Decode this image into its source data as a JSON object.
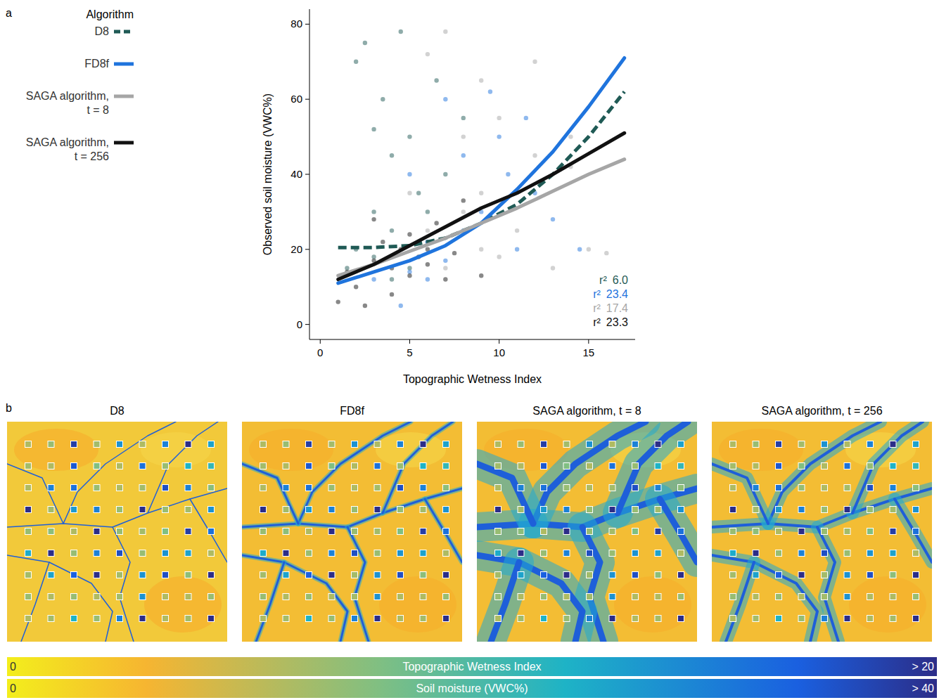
{
  "chart_data": [
    {
      "type": "scatter",
      "panel_label": "a",
      "x_label": "Topographic Wetness Index",
      "y_label": "Observed soil moisture (VWC%)",
      "xlim": [
        -0.6,
        17.6
      ],
      "xticks": [
        0,
        5,
        10,
        15
      ],
      "ylim": [
        -4,
        84
      ],
      "yticks": [
        0,
        20,
        40,
        60,
        80
      ],
      "grid": false,
      "legend": "left",
      "legend_title": "Algorithm",
      "r2_symbol": "r²",
      "series": [
        {
          "name": "D8",
          "color": "#1f5a55",
          "line_style": "dashed",
          "r2_label": "6.0",
          "x": [
            1,
            3,
            5,
            7,
            9,
            11,
            13,
            15,
            17
          ],
          "values": [
            20.5,
            20.5,
            21,
            23,
            27,
            32,
            40,
            50,
            62
          ],
          "points": {
            "x": [
              2,
              2.5,
              3,
              3.5,
              4,
              4.5,
              5,
              5.5,
              6,
              2,
              3,
              4,
              5,
              6,
              7,
              1.5,
              3,
              4,
              8,
              6.5
            ],
            "y": [
              70,
              75,
              52,
              60,
              45,
              78,
              50,
              35,
              22,
              20,
              18,
              25,
              15,
              30,
              40,
              15,
              30,
              12,
              55,
              65
            ]
          }
        },
        {
          "name": "FD8f",
          "color": "#1f74dd",
          "line_style": "solid",
          "r2_label": "23.4",
          "x": [
            1,
            3,
            5,
            7,
            9,
            11,
            13,
            15,
            17
          ],
          "values": [
            11,
            14,
            17,
            21,
            27,
            36,
            46,
            58,
            71
          ],
          "points": {
            "x": [
              4,
              5,
              6,
              7,
              8,
              9,
              10,
              11,
              12,
              13,
              5,
              6,
              7,
              8,
              9.5,
              10.5,
              11.5,
              14.5,
              3,
              4.5
            ],
            "y": [
              18,
              14,
              22,
              60,
              45,
              30,
              50,
              20,
              35,
              28,
              40,
              12,
              17,
              25,
              62,
              40,
              55,
              20,
              12,
              5
            ]
          }
        },
        {
          "name": "SAGA algorithm, t = 8",
          "color": "#a6a6a6",
          "line_style": "solid",
          "r2_label": "17.4",
          "x": [
            1,
            3,
            5,
            7,
            9,
            11,
            13,
            15,
            17
          ],
          "values": [
            13,
            16,
            19.5,
            23,
            27,
            31,
            35.5,
            40,
            44
          ],
          "points": {
            "x": [
              6,
              7,
              8,
              9,
              10,
              11,
              12,
              13,
              14,
              15,
              16,
              8,
              9,
              10,
              7,
              6,
              12,
              14,
              5,
              9
            ],
            "y": [
              72,
              78,
              50,
              20,
              55,
              25,
              45,
              15,
              50,
              20,
              19,
              30,
              35,
              18,
              15,
              25,
              70,
              42,
              35,
              65
            ]
          }
        },
        {
          "name": "SAGA algorithm, t = 256",
          "color": "#111111",
          "line_style": "solid",
          "r2_label": "23.3",
          "x": [
            1,
            3,
            5,
            7,
            9,
            11,
            13,
            15,
            17
          ],
          "values": [
            12,
            16,
            21,
            26,
            31,
            35,
            40,
            45.5,
            51
          ],
          "points": {
            "x": [
              1,
              1.5,
              2,
              3,
              3.5,
              4,
              4.5,
              5,
              5.5,
              6,
              6.5,
              7,
              7.5,
              8,
              3,
              4,
              5,
              6,
              2.5,
              9
            ],
            "y": [
              6,
              14,
              10,
              17,
              22,
              15,
              20,
              13,
              18,
              16,
              27,
              12,
              19,
              33,
              28,
              8,
              24,
              20,
              5,
              13
            ]
          }
        }
      ]
    },
    {
      "type": "map",
      "panel_label": "b",
      "panels": [
        {
          "title": "D8"
        },
        {
          "title": "FD8f"
        },
        {
          "title": "SAGA algorithm, t = 8"
        },
        {
          "title": "SAGA algorithm, t = 256"
        }
      ],
      "cells": [
        [
          12,
          14,
          38,
          13,
          28,
          12,
          30,
          42,
          26
        ],
        [
          13,
          12,
          35,
          16,
          12,
          32,
          14,
          24,
          22
        ],
        [
          12,
          30,
          32,
          14,
          12,
          13,
          36,
          30,
          15
        ],
        [
          40,
          13,
          27,
          30,
          14,
          45,
          14,
          13,
          28
        ],
        [
          14,
          15,
          12,
          42,
          14,
          13,
          16,
          38,
          32
        ],
        [
          25,
          40,
          14,
          30,
          36,
          14,
          28,
          26,
          12
        ],
        [
          13,
          26,
          34,
          40,
          13,
          28,
          36,
          15,
          40
        ],
        [
          14,
          12,
          14,
          12,
          13,
          28,
          12,
          12,
          14
        ],
        [
          12,
          13,
          24,
          14,
          30,
          40,
          12,
          13,
          44
        ]
      ],
      "colorbars": [
        {
          "label": "Topographic Wetness Index",
          "range": [
            0,
            20
          ],
          "ticks": [
            {
              "value": 0,
              "label": "0"
            },
            {
              "value": 20,
              "label": "> 20"
            }
          ]
        },
        {
          "label": "Soil moisture (VWC%)",
          "range": [
            0,
            40
          ],
          "ticks": [
            {
              "value": 0,
              "label": "0"
            },
            {
              "value": 40,
              "label": "> 40"
            }
          ]
        }
      ]
    }
  ]
}
